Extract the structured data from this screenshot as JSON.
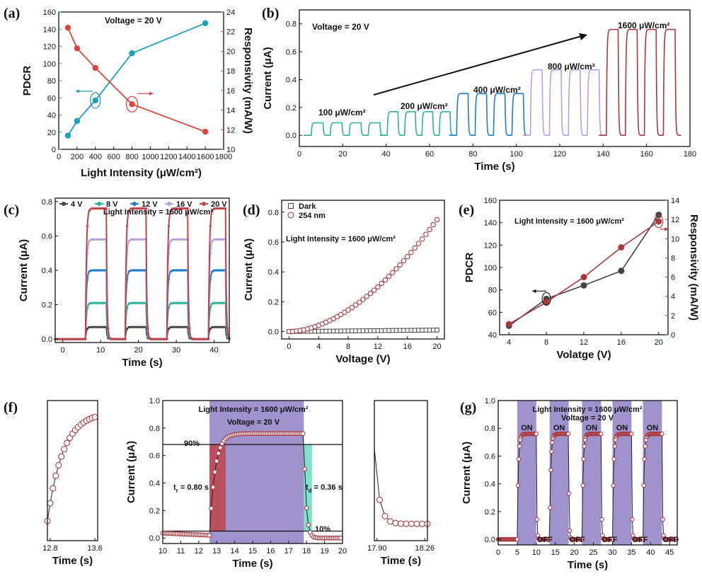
{
  "colors": {
    "teal": "#1e9fb8",
    "red": "#d9453f",
    "maroon": "#a83a3f",
    "purple": "#8e7fc4",
    "rise": "#c0444a",
    "fall": "#6ee0c4",
    "dark": "#444444",
    "lightPurple": "#b9a0dd",
    "green": "#2bb399",
    "blue": "#1e7fc8"
  },
  "chart_data": [
    {
      "id": "a",
      "panel": "(a)",
      "type": "line",
      "annotation": "Voltage = 20 V",
      "xlabel": "Light Intensity (μW/cm²)",
      "ylabel": "PDCR",
      "y2label": "Responsivity (mA/W)",
      "xlim": [
        0,
        1800
      ],
      "ylim": [
        0,
        160
      ],
      "y2lim": [
        10,
        24
      ],
      "xticks": [
        0,
        200,
        400,
        600,
        800,
        1000,
        1200,
        1400,
        1600,
        1800
      ],
      "yticks": [
        0,
        20,
        40,
        60,
        80,
        100,
        120,
        140,
        160
      ],
      "y2ticks": [
        10,
        12,
        14,
        16,
        18,
        20,
        22,
        24
      ],
      "series": [
        {
          "name": "PDCR",
          "axis": "left",
          "x": [
            100,
            200,
            400,
            800,
            1600
          ],
          "values": [
            16,
            33,
            57,
            112,
            147
          ]
        },
        {
          "name": "Responsivity",
          "axis": "right",
          "x": [
            100,
            200,
            400,
            800,
            1600
          ],
          "values": [
            22.4,
            20.3,
            18.3,
            14.6,
            11.8
          ]
        }
      ]
    },
    {
      "id": "b",
      "panel": "(b)",
      "type": "line",
      "annotation": "Voltage = 20 V",
      "xlabel": "Time (s)",
      "ylabel": "Current (μA)",
      "xlim": [
        0,
        180
      ],
      "ylim": [
        -0.08,
        0.9
      ],
      "xticks": [
        0,
        20,
        40,
        60,
        80,
        100,
        120,
        140,
        160,
        180
      ],
      "yticks": [
        0.0,
        0.2,
        0.4,
        0.6,
        0.8
      ],
      "levels": [
        {
          "label": "100 μW/cm²",
          "x0": 5,
          "x1": 40,
          "current": 0.09
        },
        {
          "label": "200 μW/cm²",
          "x0": 40,
          "x1": 72,
          "current": 0.17
        },
        {
          "label": "400 μW/cm²",
          "x0": 72,
          "x1": 106,
          "current": 0.3
        },
        {
          "label": "800 μW/cm²",
          "x0": 106,
          "x1": 141,
          "current": 0.47
        },
        {
          "label": "1600 μW/cm²",
          "x0": 141,
          "x1": 176,
          "current": 0.76
        }
      ]
    },
    {
      "id": "c",
      "panel": "(c)",
      "type": "line",
      "annotation": "Light Intensity = 1600 μW/cm²",
      "xlabel": "Time (s)",
      "ylabel": "Current (μA)",
      "xlim": [
        -2,
        44
      ],
      "ylim": [
        -0.02,
        0.82
      ],
      "xticks": [
        0,
        10,
        20,
        30,
        40
      ],
      "yticks": [
        0.0,
        0.2,
        0.4,
        0.6,
        0.8
      ],
      "on_intervals": [
        [
          6,
          11.5
        ],
        [
          16.5,
          22
        ],
        [
          27.5,
          33
        ],
        [
          38.5,
          43
        ]
      ],
      "series": [
        {
          "name": "4 V",
          "current": 0.07
        },
        {
          "name": "8 V",
          "current": 0.21
        },
        {
          "name": "12 V",
          "current": 0.4
        },
        {
          "name": "16 V",
          "current": 0.58
        },
        {
          "name": "20 V",
          "current": 0.76
        }
      ]
    },
    {
      "id": "d",
      "panel": "(d)",
      "type": "scatter",
      "annotation": "Light Intensity = 1600 μW/cm²",
      "xlabel": "Voltage (V)",
      "ylabel": "Current (μA)",
      "xlim": [
        -1,
        21
      ],
      "ylim": [
        -0.05,
        0.88
      ],
      "xticks": [
        0,
        4,
        8,
        12,
        16,
        20
      ],
      "yticks": [
        0.0,
        0.2,
        0.4,
        0.6,
        0.8
      ],
      "series": [
        {
          "name": "Dark",
          "current_at_20V": 0.01
        },
        {
          "name": "254 nm",
          "current_at_20V": 0.75
        }
      ]
    },
    {
      "id": "e",
      "panel": "(e)",
      "type": "line",
      "annotation": "Light Intensity = 1600 μW/cm²",
      "xlabel": "Volatge (V)",
      "ylabel": "PDCR",
      "y2label": "Responsivity (mA/W)",
      "xlim": [
        3,
        21
      ],
      "ylim": [
        40,
        160
      ],
      "y2lim": [
        0,
        14
      ],
      "xticks": [
        4,
        8,
        12,
        16,
        20
      ],
      "yticks": [
        40,
        60,
        80,
        100,
        120,
        140,
        160
      ],
      "y2ticks": [
        0,
        2,
        4,
        6,
        8,
        10,
        12,
        14
      ],
      "series": [
        {
          "name": "PDCR",
          "axis": "left",
          "x": [
            4,
            8,
            12,
            16,
            20
          ],
          "values": [
            48,
            72,
            84,
            97,
            147
          ]
        },
        {
          "name": "Responsivity",
          "axis": "right",
          "x": [
            4,
            8,
            12,
            16,
            20
          ],
          "values": [
            1.1,
            3.4,
            6.0,
            9.1,
            11.8
          ]
        }
      ]
    },
    {
      "id": "f1",
      "panel": "(f)",
      "type": "scatter",
      "xlabel": "Time (s)",
      "xlim": [
        12.8,
        13.6
      ],
      "xticks": [
        12.8,
        13.6
      ],
      "ylim": [
        0,
        1
      ]
    },
    {
      "id": "f",
      "type": "scatter",
      "annotation": [
        "Light Intensity = 1600 μW/cm²",
        "Voltage = 20 V"
      ],
      "xlabel": "Time (s)",
      "ylabel": "Current (μA)",
      "xlim": [
        10,
        20
      ],
      "ylim": [
        -0.04,
        1.0
      ],
      "xticks": [
        10,
        11,
        12,
        13,
        14,
        15,
        16,
        17,
        18,
        19,
        20
      ],
      "yticks": [
        0.0,
        0.2,
        0.4,
        0.6,
        0.8,
        1.0
      ],
      "rise_time": "0.80 s",
      "decay_time": "0.36 s",
      "level90": 0.68,
      "level10": 0.05,
      "on": [
        12.6,
        17.85
      ],
      "saturation": 0.76
    },
    {
      "id": "f3",
      "type": "scatter",
      "xlabel": "Time (s)",
      "xlim": [
        17.9,
        18.26
      ],
      "xticks": [
        17.9,
        18.26
      ],
      "ylim": [
        0,
        1
      ]
    },
    {
      "id": "g",
      "panel": "(g)",
      "type": "scatter",
      "annotation": [
        "Light Intensity = 1600 μW/cm²",
        "Voltage = 20 V"
      ],
      "xlabel": "Time (s)",
      "ylabel": "Current (μA)",
      "xlim": [
        0,
        47
      ],
      "ylim": [
        -0.04,
        1.0
      ],
      "xticks": [
        0,
        5,
        10,
        15,
        20,
        25,
        30,
        35,
        40,
        45
      ],
      "yticks": [
        0.0,
        0.2,
        0.4,
        0.6,
        0.8,
        1.0
      ],
      "on_intervals": [
        [
          5,
          10
        ],
        [
          13.5,
          18.5
        ],
        [
          22,
          27
        ],
        [
          30,
          35
        ],
        [
          38,
          43
        ]
      ],
      "saturation": 0.76,
      "on_label": "ON",
      "off_label": "OFF"
    }
  ],
  "text": {
    "a_x": "Light Intensity (μW/cm²)",
    "tr_label": "t",
    "tr_sub": "r",
    "tr_val": " = 0.80 s",
    "td_sub": "d",
    "td_val": " = 0.36 s",
    "pct90": "90%",
    "pct10": "10%"
  }
}
